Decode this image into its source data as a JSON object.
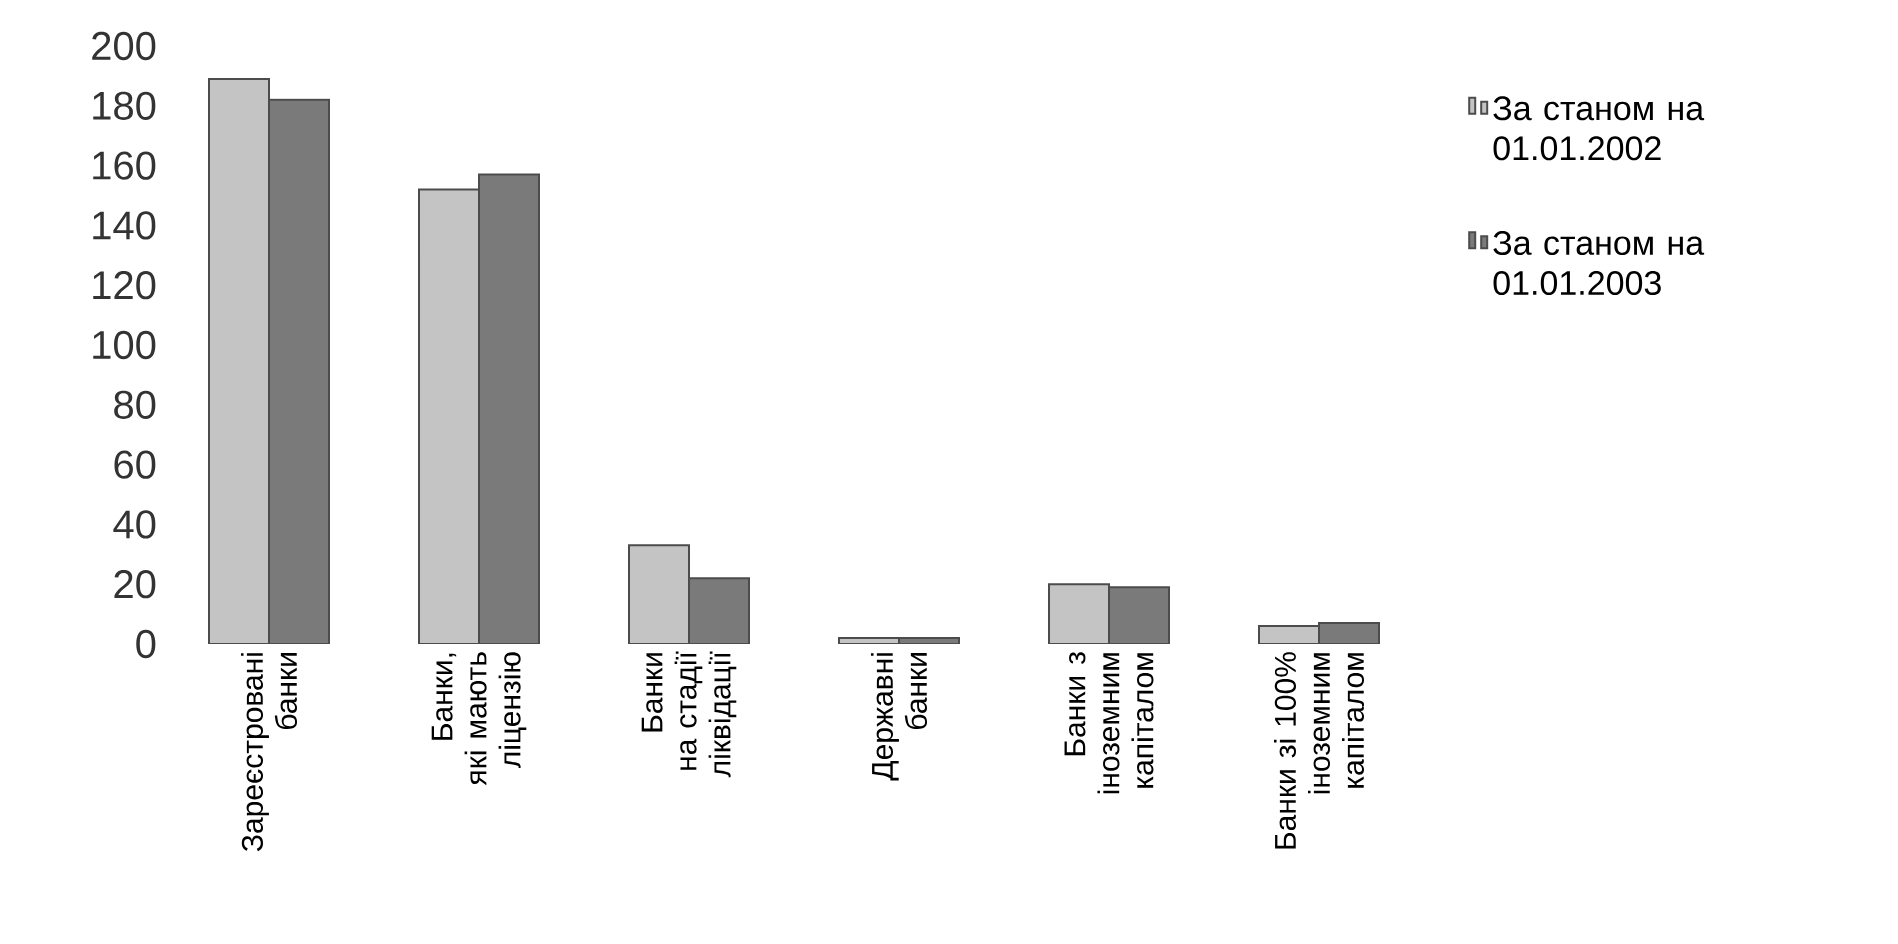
{
  "chart_data": {
    "type": "bar",
    "categories": [
      "Зареєстровані банки",
      "Банки, які мають ліцензію",
      "Банки на стадії ліквідації",
      "Державні банки",
      "Банки з іноземним капіталом",
      "Банки зі 100% іноземним капіталом"
    ],
    "series": [
      {
        "name": "За станом на 01.01.2002",
        "color": "#c4c4c4",
        "values": [
          189,
          152,
          33,
          2,
          20,
          6
        ]
      },
      {
        "name": "За станом на 01.01.2003",
        "color": "#7a7a7a",
        "values": [
          182,
          157,
          22,
          2,
          19,
          7
        ]
      }
    ],
    "ylim": [
      0,
      200
    ],
    "yticks": [
      0,
      20,
      40,
      60,
      80,
      100,
      120,
      140,
      160,
      180,
      200
    ],
    "legend": "right",
    "grid": false
  }
}
